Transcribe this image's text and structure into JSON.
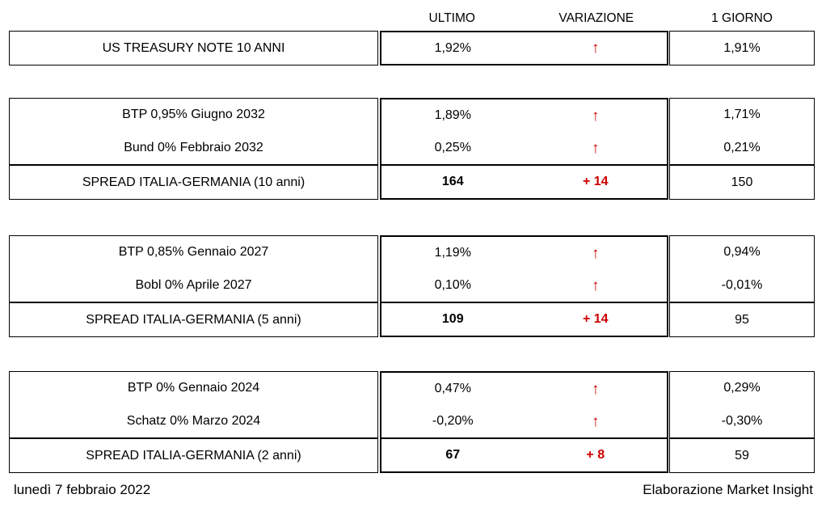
{
  "colors": {
    "accent_red": "#CC0000",
    "border_black": "#000000",
    "background": "#FFFFFF"
  },
  "header": {
    "ultimo": "ULTIMO",
    "variazione": "VARIAZIONE",
    "giorno": "1 GIORNO"
  },
  "icons": {
    "up_arrow": "↑"
  },
  "groups": [
    {
      "rows": [
        {
          "label": "US TREASURY NOTE 10 ANNI",
          "ultimo": "1,92%",
          "variazione": "↑",
          "giorno": "1,91%"
        }
      ]
    },
    {
      "rows": [
        {
          "label": "BTP 0,95% Giugno 2032",
          "ultimo": "1,89%",
          "variazione": "↑",
          "giorno": "1,71%"
        },
        {
          "label": "Bund 0% Febbraio 2032",
          "ultimo": "0,25%",
          "variazione": "↑",
          "giorno": "0,21%"
        },
        {
          "label": "SPREAD ITALIA-GERMANIA (10 anni)",
          "ultimo": "164",
          "variazione": "+ 14",
          "giorno": "150"
        }
      ]
    },
    {
      "rows": [
        {
          "label": "BTP 0,85% Gennaio 2027",
          "ultimo": "1,19%",
          "variazione": "↑",
          "giorno": "0,94%"
        },
        {
          "label": "Bobl 0% Aprile 2027",
          "ultimo": "0,10%",
          "variazione": "↑",
          "giorno": "-0,01%"
        },
        {
          "label": "SPREAD ITALIA-GERMANIA (5 anni)",
          "ultimo": "109",
          "variazione": "+ 14",
          "giorno": "95"
        }
      ]
    },
    {
      "rows": [
        {
          "label": "BTP 0% Gennaio 2024",
          "ultimo": "0,47%",
          "variazione": "↑",
          "giorno": "0,29%"
        },
        {
          "label": "Schatz 0% Marzo 2024",
          "ultimo": "-0,20%",
          "variazione": "↑",
          "giorno": "-0,30%"
        },
        {
          "label": "SPREAD ITALIA-GERMANIA (2 anni)",
          "ultimo": "67",
          "variazione": "+ 8",
          "giorno": "59"
        }
      ]
    }
  ],
  "footer": {
    "date": "lunedì 7 febbraio 2022",
    "credit": "Elaborazione Market Insight"
  }
}
